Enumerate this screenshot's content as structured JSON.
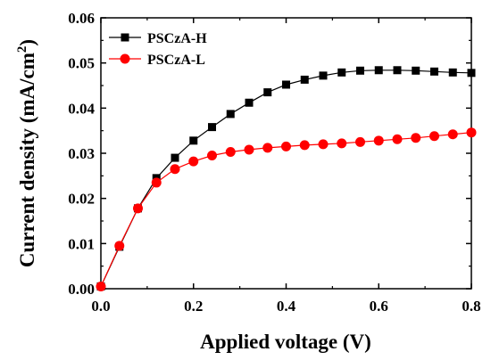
{
  "chart_data": {
    "type": "line",
    "xlabel": "Applied voltage (V)",
    "ylabel_main": "Current density (mA/cm",
    "ylabel_sup": "2",
    "ylabel_close": ")",
    "xlim": [
      0.0,
      0.8
    ],
    "ylim": [
      0.0,
      0.06
    ],
    "xticks": [
      "0.0",
      "0.2",
      "0.4",
      "0.6",
      "0.8"
    ],
    "yticks": [
      "0.00",
      "0.01",
      "0.02",
      "0.03",
      "0.04",
      "0.05",
      "0.06"
    ],
    "x": [
      0.0,
      0.04,
      0.08,
      0.12,
      0.16,
      0.2,
      0.24,
      0.28,
      0.32,
      0.36,
      0.4,
      0.44,
      0.48,
      0.52,
      0.56,
      0.6,
      0.64,
      0.68,
      0.72,
      0.76,
      0.8
    ],
    "series": [
      {
        "name": "PSCzA-H",
        "color": "#000000",
        "marker": "square",
        "values": [
          0.0005,
          0.0093,
          0.0178,
          0.0245,
          0.029,
          0.0328,
          0.0358,
          0.0387,
          0.0412,
          0.0435,
          0.0452,
          0.0463,
          0.0472,
          0.0479,
          0.0483,
          0.0484,
          0.0484,
          0.0483,
          0.0481,
          0.0479,
          0.0478
        ]
      },
      {
        "name": "PSCzA-L",
        "color": "#ff0000",
        "marker": "circle",
        "values": [
          0.0005,
          0.0095,
          0.0178,
          0.0235,
          0.0265,
          0.0282,
          0.0295,
          0.0303,
          0.0308,
          0.0312,
          0.0315,
          0.0318,
          0.032,
          0.0322,
          0.0325,
          0.0328,
          0.0331,
          0.0334,
          0.0338,
          0.0342,
          0.0346
        ]
      }
    ],
    "legend_position": "top-left",
    "grid": false
  }
}
